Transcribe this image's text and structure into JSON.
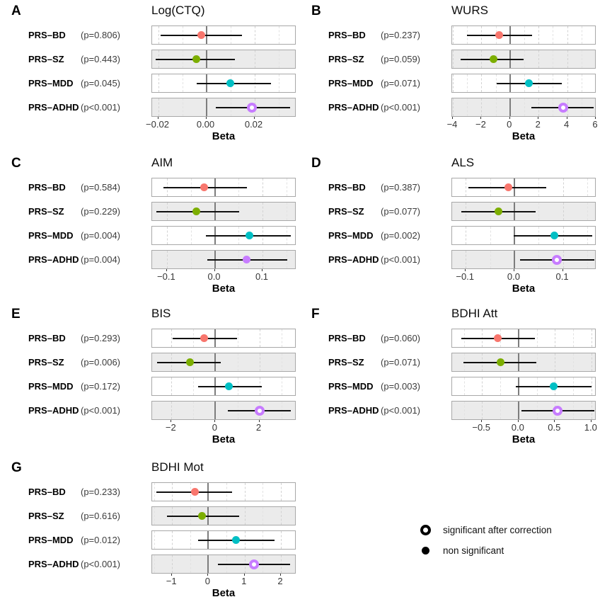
{
  "figure": {
    "xlabel": "Beta",
    "legend": {
      "items": [
        {
          "marker": "open-circle",
          "label": "significant after correction"
        },
        {
          "marker": "filled-circle",
          "label": "non significant"
        }
      ]
    }
  },
  "colors": {
    "bd": "#F8766D",
    "sz": "#7CAE00",
    "mdd": "#00BFC4",
    "adhd": "#C77CFF",
    "shaded_row_bg": "#ebebeb",
    "panel_border": "#a8a8a8",
    "zero_line": "#7d7d7d",
    "grid_dashed": "#d2d2d2",
    "ci_line": "#101010"
  },
  "chart_data": [
    {
      "type": "forest",
      "panel_letter": "A",
      "title": "Log(CTQ)",
      "xlabel": "Beta",
      "xlim": [
        -0.0225,
        0.0375
      ],
      "ticks": [
        -0.02,
        0,
        0.02
      ],
      "tick_labels": [
        "−0.02",
        "0.00",
        "0.02"
      ],
      "grid": "dashed-major-minor",
      "rows": [
        {
          "label": "PRS–BD",
          "p_label": "(p=0.806)",
          "beta": -0.002,
          "ci_low": -0.019,
          "ci_high": 0.015,
          "color_key": "bd",
          "significant_after_correction": false
        },
        {
          "label": "PRS–SZ",
          "p_label": "(p=0.443)",
          "beta": -0.004,
          "ci_low": -0.021,
          "ci_high": 0.012,
          "color_key": "sz",
          "significant_after_correction": false
        },
        {
          "label": "PRS–MDD",
          "p_label": "(p=0.045)",
          "beta": 0.01,
          "ci_low": -0.004,
          "ci_high": 0.027,
          "color_key": "mdd",
          "significant_after_correction": false
        },
        {
          "label": "PRS–ADHD",
          "p_label": "(p<0.001)",
          "beta": 0.019,
          "ci_low": 0.004,
          "ci_high": 0.035,
          "color_key": "adhd",
          "significant_after_correction": true
        }
      ]
    },
    {
      "type": "forest",
      "panel_letter": "B",
      "title": "WURS",
      "xlabel": "Beta",
      "xlim": [
        -4.05,
        6.05
      ],
      "ticks": [
        -4,
        -2,
        0,
        2,
        4,
        6
      ],
      "tick_labels": [
        "−4",
        "−2",
        "0",
        "2",
        "4",
        "6"
      ],
      "grid": "dashed-major-minor",
      "rows": [
        {
          "label": "PRS–BD",
          "p_label": "(p=0.237)",
          "beta": -0.75,
          "ci_low": -3.0,
          "ci_high": 1.55,
          "color_key": "bd",
          "significant_after_correction": false
        },
        {
          "label": "PRS–SZ",
          "p_label": "(p=0.059)",
          "beta": -1.15,
          "ci_low": -3.45,
          "ci_high": 0.95,
          "color_key": "sz",
          "significant_after_correction": false
        },
        {
          "label": "PRS–MDD",
          "p_label": "(p=0.071)",
          "beta": 1.3,
          "ci_low": -0.95,
          "ci_high": 3.65,
          "color_key": "mdd",
          "significant_after_correction": false
        },
        {
          "label": "PRS–ADHD",
          "p_label": "(p<0.001)",
          "beta": 3.7,
          "ci_low": 1.5,
          "ci_high": 5.85,
          "color_key": "adhd",
          "significant_after_correction": true
        }
      ]
    },
    {
      "type": "forest",
      "panel_letter": "C",
      "title": "AIM",
      "xlabel": "Beta",
      "xlim": [
        -0.131,
        0.171
      ],
      "ticks": [
        -0.1,
        0,
        0.1
      ],
      "tick_labels": [
        "−0.1",
        "0.0",
        "0.1"
      ],
      "grid": "dashed-major-minor",
      "rows": [
        {
          "label": "PRS–BD",
          "p_label": "(p=0.584)",
          "beta": -0.023,
          "ci_low": -0.107,
          "ci_high": 0.067,
          "color_key": "bd",
          "significant_after_correction": false
        },
        {
          "label": "PRS–SZ",
          "p_label": "(p=0.229)",
          "beta": -0.038,
          "ci_low": -0.122,
          "ci_high": 0.051,
          "color_key": "sz",
          "significant_after_correction": false
        },
        {
          "label": "PRS–MDD",
          "p_label": "(p=0.004)",
          "beta": 0.072,
          "ci_low": -0.018,
          "ci_high": 0.159,
          "color_key": "mdd",
          "significant_after_correction": false
        },
        {
          "label": "PRS–ADHD",
          "p_label": "(p=0.004)",
          "beta": 0.067,
          "ci_low": -0.016,
          "ci_high": 0.152,
          "color_key": "adhd",
          "significant_after_correction": false
        }
      ]
    },
    {
      "type": "forest",
      "panel_letter": "D",
      "title": "ALS",
      "xlabel": "Beta",
      "xlim": [
        -0.128,
        0.169
      ],
      "ticks": [
        -0.1,
        0,
        0.1
      ],
      "tick_labels": [
        "−0.1",
        "0.0",
        "0.1"
      ],
      "grid": "dashed-major-minor",
      "rows": [
        {
          "label": "PRS–BD",
          "p_label": "(p=0.387)",
          "beta": -0.013,
          "ci_low": -0.095,
          "ci_high": 0.065,
          "color_key": "bd",
          "significant_after_correction": false
        },
        {
          "label": "PRS–SZ",
          "p_label": "(p=0.077)",
          "beta": -0.033,
          "ci_low": -0.109,
          "ci_high": 0.044,
          "color_key": "sz",
          "significant_after_correction": false
        },
        {
          "label": "PRS–MDD",
          "p_label": "(p=0.002)",
          "beta": 0.083,
          "ci_low": -0.002,
          "ci_high": 0.16,
          "color_key": "mdd",
          "significant_after_correction": false
        },
        {
          "label": "PRS–ADHD",
          "p_label": "(p<0.001)",
          "beta": 0.088,
          "ci_low": 0.012,
          "ci_high": 0.165,
          "color_key": "adhd",
          "significant_after_correction": true
        }
      ]
    },
    {
      "type": "forest",
      "panel_letter": "E",
      "title": "BIS",
      "xlabel": "Beta",
      "xlim": [
        -2.88,
        3.69
      ],
      "ticks": [
        -2,
        0,
        2
      ],
      "tick_labels": [
        "−2",
        "0",
        "2"
      ],
      "grid": "dashed-major-minor",
      "rows": [
        {
          "label": "PRS–BD",
          "p_label": "(p=0.293)",
          "beta": -0.5,
          "ci_low": -1.95,
          "ci_high": 1.0,
          "color_key": "bd",
          "significant_after_correction": false
        },
        {
          "label": "PRS–SZ",
          "p_label": "(p=0.006)",
          "beta": -1.15,
          "ci_low": -2.65,
          "ci_high": 0.25,
          "color_key": "sz",
          "significant_after_correction": false
        },
        {
          "label": "PRS–MDD",
          "p_label": "(p=0.172)",
          "beta": 0.6,
          "ci_low": -0.8,
          "ci_high": 2.1,
          "color_key": "mdd",
          "significant_after_correction": false
        },
        {
          "label": "PRS–ADHD",
          "p_label": "(p<0.001)",
          "beta": 2.0,
          "ci_low": 0.57,
          "ci_high": 3.45,
          "color_key": "adhd",
          "significant_after_correction": true
        }
      ]
    },
    {
      "type": "forest",
      "panel_letter": "F",
      "title": "BDHI Att",
      "xlabel": "Beta",
      "xlim": [
        -0.91,
        1.07
      ],
      "ticks": [
        -0.5,
        0,
        0.5,
        1.0
      ],
      "tick_labels": [
        "−0.5",
        "0.0",
        "0.5",
        "1.0"
      ],
      "grid": "dashed-major-minor",
      "rows": [
        {
          "label": "PRS–BD",
          "p_label": "(p=0.060)",
          "beta": -0.28,
          "ci_low": -0.78,
          "ci_high": 0.23,
          "color_key": "bd",
          "significant_after_correction": false
        },
        {
          "label": "PRS–SZ",
          "p_label": "(p=0.071)",
          "beta": -0.25,
          "ci_low": -0.76,
          "ci_high": 0.24,
          "color_key": "sz",
          "significant_after_correction": false
        },
        {
          "label": "PRS–MDD",
          "p_label": "(p=0.003)",
          "beta": 0.48,
          "ci_low": -0.04,
          "ci_high": 1.0,
          "color_key": "mdd",
          "significant_after_correction": false
        },
        {
          "label": "PRS–ADHD",
          "p_label": "(p<0.001)",
          "beta": 0.54,
          "ci_low": 0.04,
          "ci_high": 1.04,
          "color_key": "adhd",
          "significant_after_correction": true
        }
      ]
    },
    {
      "type": "forest",
      "panel_letter": "G",
      "title": "BDHI Mot",
      "xlabel": "Beta",
      "xlim": [
        -1.55,
        2.43
      ],
      "ticks": [
        -1,
        0,
        1,
        2
      ],
      "tick_labels": [
        "−1",
        "0",
        "1",
        "2"
      ],
      "grid": "dashed-major-minor",
      "rows": [
        {
          "label": "PRS–BD",
          "p_label": "(p=0.233)",
          "beta": -0.38,
          "ci_low": -1.43,
          "ci_high": 0.65,
          "color_key": "bd",
          "significant_after_correction": false
        },
        {
          "label": "PRS–SZ",
          "p_label": "(p=0.616)",
          "beta": -0.18,
          "ci_low": -1.14,
          "ci_high": 0.85,
          "color_key": "sz",
          "significant_after_correction": false
        },
        {
          "label": "PRS–MDD",
          "p_label": "(p=0.012)",
          "beta": 0.77,
          "ci_low": -0.28,
          "ci_high": 1.83,
          "color_key": "mdd",
          "significant_after_correction": false
        },
        {
          "label": "PRS–ADHD",
          "p_label": "(p<0.001)",
          "beta": 1.26,
          "ci_low": 0.27,
          "ci_high": 2.26,
          "color_key": "adhd",
          "significant_after_correction": true
        }
      ]
    }
  ]
}
